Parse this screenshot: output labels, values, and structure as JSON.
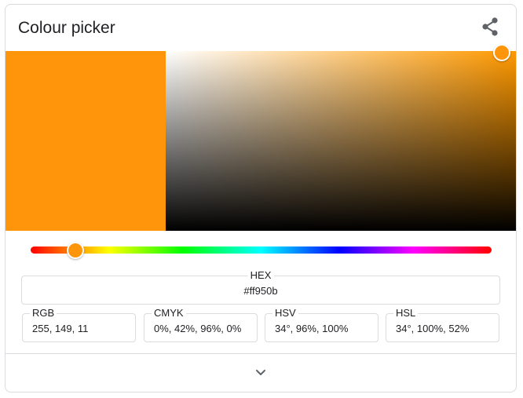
{
  "header": {
    "title": "Colour picker",
    "share_icon": "share-icon"
  },
  "color": {
    "hex_value": "#ff950b",
    "swatch_color": "#ff950b",
    "hue_color": "#ff9900"
  },
  "fields": {
    "hex": {
      "label": "HEX",
      "value": "#ff950b"
    },
    "rgb": {
      "label": "RGB",
      "value": "255, 149, 11"
    },
    "cmyk": {
      "label": "CMYK",
      "value": "0%, 42%, 96%, 0%"
    },
    "hsv": {
      "label": "HSV",
      "value": "34°, 96%, 100%"
    },
    "hsl": {
      "label": "HSL",
      "value": "34°, 100%, 52%"
    }
  },
  "footer": {
    "expand_icon": "chevron-down-icon"
  }
}
